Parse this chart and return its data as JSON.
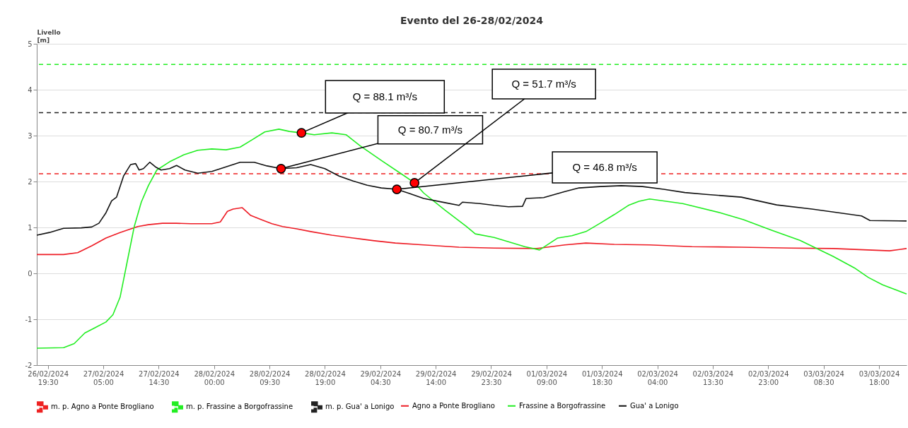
{
  "chart_data": {
    "type": "line",
    "title": "Evento del 26-28/02/2024",
    "ylabel": "Livello [m]",
    "xlim": [
      "2024-02-26T17:36",
      "2024-03-03T22:44"
    ],
    "xticks": [
      {
        "value": "2024-02-26T19:30",
        "label": "26/02/2024\n19:30"
      },
      {
        "value": "2024-02-27T05:00",
        "label": "27/02/2024\n05:00"
      },
      {
        "value": "2024-02-27T14:30",
        "label": "27/02/2024\n14:30"
      },
      {
        "value": "2024-02-28T00:00",
        "label": "28/02/2024\n00:00"
      },
      {
        "value": "2024-02-28T09:30",
        "label": "28/02/2024\n09:30"
      },
      {
        "value": "2024-02-28T19:00",
        "label": "28/02/2024\n19:00"
      },
      {
        "value": "2024-02-29T04:30",
        "label": "29/02/2024\n04:30"
      },
      {
        "value": "2024-02-29T14:00",
        "label": "29/02/2024\n14:00"
      },
      {
        "value": "2024-02-29T23:30",
        "label": "29/02/2024\n23:30"
      },
      {
        "value": "2024-03-01T09:00",
        "label": "01/03/2024\n09:00"
      },
      {
        "value": "2024-03-01T18:30",
        "label": "01/03/2024\n18:30"
      },
      {
        "value": "2024-03-02T04:00",
        "label": "02/03/2024\n04:00"
      },
      {
        "value": "2024-03-02T13:30",
        "label": "02/03/2024\n13:30"
      },
      {
        "value": "2024-03-02T23:00",
        "label": "02/03/2024\n23:00"
      },
      {
        "value": "2024-03-03T08:30",
        "label": "03/03/2024\n08:30"
      },
      {
        "value": "2024-03-03T18:00",
        "label": "03/03/2024\n18:00"
      }
    ],
    "ylim": [
      -2,
      5
    ],
    "yticks": [
      {
        "value": -2,
        "label": "-2"
      },
      {
        "value": -1,
        "label": "-1"
      },
      0,
      1,
      2,
      3,
      4,
      5
    ],
    "grid": "y",
    "legend": "bottom",
    "line_style": "solid",
    "ref_lines": [
      {
        "axis": "y",
        "value": 2.17,
        "label": "m. p. Agno a Ponte Brogliano",
        "color": "#ee2222",
        "line_style": "dashed"
      },
      {
        "axis": "y",
        "value": 4.55,
        "label": "m. p. Frassine a Borgofrassine",
        "color": "#22ee22",
        "line_style": "dashed"
      },
      {
        "axis": "y",
        "value": 3.5,
        "label": "m. p. Gua' a Lonigo",
        "color": "#222222",
        "line_style": "dashed"
      }
    ],
    "series": [
      {
        "name": "Agno a Ponte Brogliano",
        "color": "#ee1c25",
        "x": [
          "2024-02-26T17:36",
          "2024-02-26T22:12",
          "2024-02-27T00:37",
          "2024-02-27T03:02",
          "2024-02-27T05:28",
          "2024-02-27T07:53",
          "2024-02-27T10:55",
          "2024-02-27T12:44",
          "2024-02-27T15:09",
          "2024-02-27T17:34",
          "2024-02-27T19:59",
          "2024-02-27T23:37",
          "2024-02-28T01:04",
          "2024-02-28T02:17",
          "2024-02-28T03:16",
          "2024-02-28T04:50",
          "2024-02-28T06:17",
          "2024-02-28T08:06",
          "2024-02-28T09:55",
          "2024-02-28T11:44",
          "2024-02-28T14:09",
          "2024-02-28T16:34",
          "2024-02-28T20:12",
          "2024-02-28T23:50",
          "2024-02-29T03:28",
          "2024-02-29T07:05",
          "2024-02-29T11:56",
          "2024-02-29T17:59",
          "2024-03-01T00:02",
          "2024-03-01T07:18",
          "2024-03-01T12:08",
          "2024-03-01T15:46",
          "2024-03-01T20:37",
          "2024-03-02T02:40",
          "2024-03-02T09:56",
          "2024-03-02T18:24",
          "2024-03-03T02:52",
          "2024-03-03T10:08",
          "2024-03-03T19:49",
          "2024-03-03T22:44"
        ],
        "values": [
          0.41,
          0.41,
          0.45,
          0.6,
          0.77,
          0.89,
          1.02,
          1.06,
          1.09,
          1.09,
          1.08,
          1.08,
          1.12,
          1.35,
          1.4,
          1.43,
          1.26,
          1.17,
          1.08,
          1.02,
          0.97,
          0.91,
          0.83,
          0.77,
          0.71,
          0.66,
          0.62,
          0.57,
          0.55,
          0.54,
          0.62,
          0.66,
          0.63,
          0.62,
          0.58,
          0.57,
          0.55,
          0.54,
          0.49,
          0.54
        ]
      },
      {
        "name": "Frassine a Borgofrassine",
        "color": "#22ee22",
        "x": [
          "2024-02-26T17:36",
          "2024-02-26T22:12",
          "2024-02-27T00:01",
          "2024-02-27T01:50",
          "2024-02-27T03:39",
          "2024-02-27T05:28",
          "2024-02-27T06:40",
          "2024-02-27T07:53",
          "2024-02-27T09:06",
          "2024-02-27T10:19",
          "2024-02-27T11:31",
          "2024-02-27T12:44",
          "2024-02-27T14:11",
          "2024-02-27T16:22",
          "2024-02-27T18:47",
          "2024-02-27T21:12",
          "2024-02-27T23:37",
          "2024-02-28T02:03",
          "2024-02-28T04:28",
          "2024-02-28T06:17",
          "2024-02-28T08:42",
          "2024-02-28T11:07",
          "2024-02-28T12:56",
          "2024-02-28T14:59",
          "2024-02-28T17:10",
          "2024-02-28T20:12",
          "2024-02-28T22:37",
          "2024-02-29T01:02",
          "2024-02-29T04:40",
          "2024-02-29T08:18",
          "2024-02-29T10:22",
          "2024-02-29T11:56",
          "2024-02-29T15:34",
          "2024-02-29T19:11",
          "2024-02-29T20:47",
          "2024-03-01T00:02",
          "2024-03-01T05:16",
          "2024-03-01T07:48",
          "2024-03-01T10:56",
          "2024-03-01T13:21",
          "2024-03-01T15:46",
          "2024-03-01T18:11",
          "2024-03-01T20:37",
          "2024-03-01T23:02",
          "2024-03-02T00:51",
          "2024-03-02T02:40",
          "2024-03-02T08:21",
          "2024-03-02T14:46",
          "2024-03-02T18:46",
          "2024-03-02T23:36",
          "2024-03-03T04:26",
          "2024-03-03T10:08",
          "2024-03-03T13:46",
          "2024-03-03T16:11",
          "2024-03-03T18:37",
          "2024-03-03T22:44"
        ],
        "values": [
          -1.63,
          -1.62,
          -1.53,
          -1.3,
          -1.18,
          -1.06,
          -0.9,
          -0.52,
          0.25,
          1.02,
          1.55,
          1.91,
          2.25,
          2.43,
          2.58,
          2.68,
          2.71,
          2.69,
          2.75,
          2.89,
          3.08,
          3.14,
          3.09,
          3.06,
          3.02,
          3.06,
          3.02,
          2.78,
          2.46,
          2.15,
          1.97,
          1.75,
          1.38,
          1.03,
          0.86,
          0.78,
          0.58,
          0.51,
          0.77,
          0.82,
          0.91,
          1.09,
          1.28,
          1.48,
          1.57,
          1.62,
          1.52,
          1.32,
          1.17,
          0.94,
          0.72,
          0.37,
          0.12,
          -0.09,
          -0.25,
          -0.45
        ]
      },
      {
        "name": "Gua' a Lonigo",
        "color": "#111111",
        "x": [
          "2024-02-26T17:36",
          "2024-02-26T19:47",
          "2024-02-26T22:12",
          "2024-02-27T01:14",
          "2024-02-27T03:02",
          "2024-02-27T04:15",
          "2024-02-27T05:28",
          "2024-02-27T06:26",
          "2024-02-27T07:17",
          "2024-02-27T08:29",
          "2024-02-27T09:42",
          "2024-02-27T10:33",
          "2024-02-27T11:09",
          "2024-02-27T11:53",
          "2024-02-27T12:58",
          "2024-02-27T13:56",
          "2024-02-27T14:55",
          "2024-02-27T16:22",
          "2024-02-27T17:34",
          "2024-02-27T19:01",
          "2024-02-27T21:12",
          "2024-02-27T23:37",
          "2024-02-28T02:03",
          "2024-02-28T04:28",
          "2024-02-28T06:53",
          "2024-02-28T09:04",
          "2024-02-28T11:29",
          "2024-02-28T14:09",
          "2024-02-28T16:34",
          "2024-02-28T18:59",
          "2024-02-28T21:25",
          "2024-02-28T23:50",
          "2024-02-29T02:15",
          "2024-02-29T04:40",
          "2024-02-29T07:20",
          "2024-02-29T09:31",
          "2024-02-29T11:56",
          "2024-02-29T15:34",
          "2024-02-29T17:59",
          "2024-02-29T18:35",
          "2024-02-29T21:37",
          "2024-03-01T00:02",
          "2024-03-01T02:28",
          "2024-03-01T04:53",
          "2024-03-01T05:29",
          "2024-03-01T08:31",
          "2024-03-01T12:08",
          "2024-03-01T14:34",
          "2024-03-01T18:11",
          "2024-03-01T21:49",
          "2024-03-02T01:27",
          "2024-03-02T05:05",
          "2024-03-02T08:43",
          "2024-03-02T12:21",
          "2024-03-02T18:24",
          "2024-03-03T00:27",
          "2024-03-03T06:31",
          "2024-03-03T15:01",
          "2024-03-03T16:28",
          "2024-03-03T22:44"
        ],
        "values": [
          0.83,
          0.89,
          0.98,
          0.99,
          1.01,
          1.09,
          1.32,
          1.58,
          1.66,
          2.12,
          2.37,
          2.39,
          2.25,
          2.28,
          2.42,
          2.32,
          2.25,
          2.28,
          2.35,
          2.25,
          2.18,
          2.22,
          2.32,
          2.42,
          2.42,
          2.34,
          2.28,
          2.3,
          2.37,
          2.28,
          2.12,
          2.01,
          1.92,
          1.86,
          1.83,
          1.74,
          1.63,
          1.54,
          1.48,
          1.55,
          1.52,
          1.48,
          1.45,
          1.46,
          1.63,
          1.65,
          1.78,
          1.86,
          1.89,
          1.91,
          1.89,
          1.83,
          1.76,
          1.72,
          1.66,
          1.49,
          1.4,
          1.25,
          1.15,
          1.14
        ]
      }
    ],
    "annotations": [
      {
        "text": "Q = 88.1 m³/s",
        "x": "2024-02-28T14:59",
        "y": 3.06
      },
      {
        "text": "Q = 80.7 m³/s",
        "x": "2024-02-28T11:29",
        "y": 2.28
      },
      {
        "text": "Q = 51.7 m³/s",
        "x": "2024-02-29T10:22",
        "y": 1.97
      },
      {
        "text": "Q = 46.8 m³/s",
        "x": "2024-02-29T07:20",
        "y": 1.83
      }
    ]
  }
}
